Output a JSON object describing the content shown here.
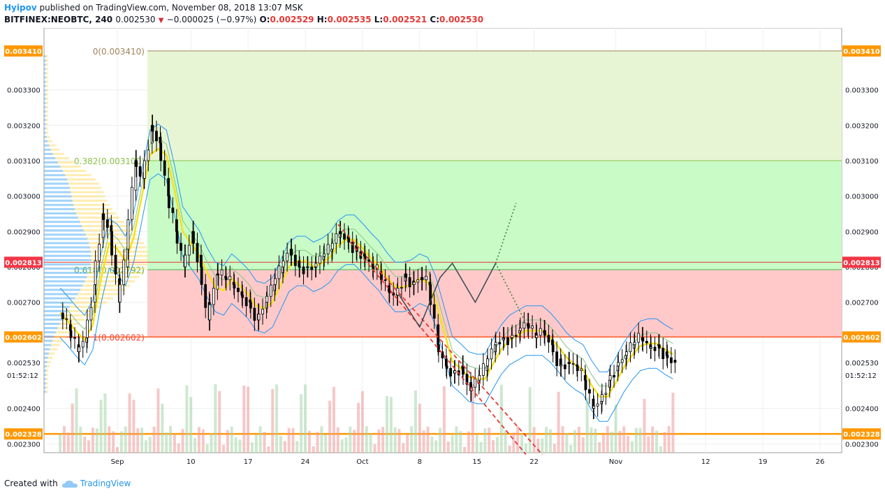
{
  "header": {
    "author": "Hyipov",
    "published": "published on TradingView.com, November 08, 2018 13:07 MSK",
    "symbol": "BITFINEX:NEOBTC, 240",
    "last": "0.002530",
    "change": "−0.000025 (−0.97%)",
    "o_label": "O:",
    "o_value": "0.002529",
    "h_label": "H:",
    "h_value": "0.002535",
    "l_label": "L:",
    "l_value": "0.002521",
    "c_label": "C:",
    "c_value": "0.002530"
  },
  "footer": {
    "created_with": "Created with",
    "brand": "TradingView"
  },
  "colors": {
    "up": "#26a69a",
    "down": "#ef5350",
    "candle": "#000000",
    "fib_top": "#e8f5d4",
    "fib_mid": "#c9fbc7",
    "fib_low": "#ffc9c9",
    "orange": "#ff9800",
    "red_tag": "#f23645",
    "band": "#2196f3",
    "ema": "#f5e11b"
  },
  "chart_data": {
    "type": "candlestick",
    "title": "",
    "x_axis": {
      "tick_labels": [
        "Sep",
        "10",
        "17",
        "24",
        "Oct",
        "8",
        "15",
        "22",
        "Nov",
        "12",
        "19",
        "26"
      ],
      "tick_days": [
        0,
        9,
        16,
        23,
        30,
        37,
        44,
        51,
        61,
        72,
        79,
        86
      ]
    },
    "y_axis": {
      "tick_labels": [
        "0.003300",
        "0.003200",
        "0.003100",
        "0.003000",
        "0.002900",
        "0.002800",
        "0.002700",
        "0.002400",
        "0.002300"
      ],
      "tick_values": [
        0.0033,
        0.0032,
        0.0031,
        0.003,
        0.0029,
        0.0028,
        0.0027,
        0.0024,
        0.0023
      ],
      "range": [
        0.002275,
        0.003475
      ]
    },
    "price_tags": [
      {
        "label": "0.003410",
        "value": 0.00341,
        "color": "#ff9800"
      },
      {
        "label": "0.002813",
        "value": 0.002813,
        "color": "#f23645"
      },
      {
        "label": "0.002602",
        "value": 0.002602,
        "color": "#ff9800"
      },
      {
        "label": "0.002328",
        "value": 0.002328,
        "color": "#ff9800"
      }
    ],
    "last_price": {
      "label": "0.002530",
      "value": 0.00253,
      "countdown": "01:52:12"
    },
    "fib_levels": [
      {
        "label": "0(0.003410)",
        "value": 0.00341
      },
      {
        "label": "0.382(0.003100)",
        "value": 0.0031
      },
      {
        "label": "0.618(0.002792)",
        "value": 0.002792
      },
      {
        "label": "1(0.002602)",
        "value": 0.002602
      }
    ],
    "series": [
      {
        "name": "",
        "days": [
          -7,
          -6,
          -5,
          -4,
          -3,
          -2,
          -1,
          0,
          1,
          2,
          3,
          4,
          5,
          6,
          7,
          8,
          9,
          10,
          11,
          12,
          13,
          14,
          15,
          16,
          17,
          18,
          19,
          20,
          21,
          22,
          23,
          24,
          25,
          26,
          27,
          28,
          29,
          30,
          31,
          32,
          33,
          34,
          35,
          36,
          37,
          38,
          39,
          40,
          41,
          42,
          43,
          44,
          45,
          46,
          47,
          48,
          49,
          50,
          51,
          52,
          53,
          54,
          55,
          56,
          57,
          58,
          59,
          60,
          61,
          62,
          63,
          64,
          65,
          66,
          67,
          68
        ],
        "close": [
          0.00267,
          0.00262,
          0.00256,
          0.0026,
          0.00275,
          0.00295,
          0.0029,
          0.0027,
          0.00285,
          0.0031,
          0.00305,
          0.0032,
          0.00315,
          0.003,
          0.0029,
          0.0028,
          0.0029,
          0.0028,
          0.00265,
          0.00278,
          0.00277,
          0.00275,
          0.00272,
          0.0027,
          0.00265,
          0.0027,
          0.00275,
          0.0028,
          0.00285,
          0.0028,
          0.0028,
          0.0028,
          0.00283,
          0.00285,
          0.0029,
          0.00288,
          0.00285,
          0.00283,
          0.0028,
          0.00278,
          0.00273,
          0.00272,
          0.00278,
          0.00275,
          0.00277,
          0.00275,
          0.00258,
          0.00252,
          0.0025,
          0.00252,
          0.00245,
          0.00248,
          0.00252,
          0.00258,
          0.0026,
          0.0026,
          0.00262,
          0.00264,
          0.0026,
          0.00262,
          0.00258,
          0.00252,
          0.00253,
          0.00252,
          0.00248,
          0.0024,
          0.00242,
          0.00248,
          0.00252,
          0.00255,
          0.00258,
          0.0026,
          0.00257,
          0.00258,
          0.00255,
          0.00253
        ]
      }
    ]
  }
}
